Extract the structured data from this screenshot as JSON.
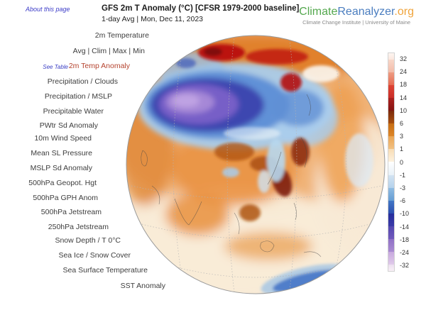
{
  "page": {
    "about_link": "About this page"
  },
  "header": {
    "title": "GFS 2m T Anomaly (°C) [CFSR 1979-2000 baseline]",
    "subtitle": "1-day Avg | Mon, Dec 11, 2023"
  },
  "brand": {
    "climate": "Climate",
    "reanalyzer": "Reanalyzer",
    "org": ".org",
    "tagline": "Climate Change Institute | University of Maine",
    "colors": {
      "climate": "#54a84e",
      "reanalyzer": "#4a7dbf",
      "org": "#f0a43c"
    }
  },
  "sidebar": {
    "see_table": "See Table",
    "selected_index": 2,
    "items": [
      "2m Temperature",
      "Avg | Clim | Max | Min",
      "2m Temp Anomaly",
      "Precipitation / Clouds",
      "Precipitation / MSLP",
      "Precipitable Water",
      "PWtr Sd Anomaly",
      "10m Wind Speed",
      "Mean SL Pressure",
      "MSLP Sd Anomaly",
      "500hPa Geopot. Hgt",
      "500hPa GPH Anom",
      "500hPa Jetstream",
      "250hPa Jetstream",
      "Snow Depth / T 0°C",
      "Sea Ice / Snow Cover",
      "Sea Surface Temperature",
      "SST Anomaly"
    ]
  },
  "colorbar": {
    "unit": "°C",
    "ticks": [
      "32",
      "24",
      "18",
      "14",
      "10",
      "6",
      "3",
      "1",
      "0",
      "-1",
      "-3",
      "-6",
      "-10",
      "-14",
      "-18",
      "-24",
      "-32"
    ],
    "segments": [
      [
        "#fdf5f0",
        "#fbe7de"
      ],
      [
        "#f8d7c9",
        "#f3bba8"
      ],
      [
        "#ee9d83",
        "#e66a52"
      ],
      [
        "#de4434",
        "#c92d28"
      ],
      [
        "#ad211e",
        "#841412"
      ],
      [
        "#7c2a0c",
        "#a84f0e"
      ],
      [
        "#c66d14",
        "#dd8628"
      ],
      [
        "#eaa554",
        "#f2c183"
      ],
      [
        "#f8dcb4",
        "#fdf2df"
      ],
      [
        "#ffffff",
        "#e8f1f8"
      ],
      [
        "#d2e3f2",
        "#b4d2ec"
      ],
      [
        "#90bce2",
        "#659dd4"
      ],
      [
        "#4277c6",
        "#2c4fb0"
      ],
      [
        "#252d9c",
        "#3b3aa8"
      ],
      [
        "#5348b0",
        "#7159bc"
      ],
      [
        "#8f70c6",
        "#ab8cd2"
      ],
      [
        "#c7a8de",
        "#e0cbea"
      ],
      [
        "#ecdff0",
        "#f8f0f6"
      ]
    ]
  },
  "globe": {
    "subject": "2m temperature anomaly, orthographic view centered on Asia",
    "warm_peak_color": "#b81010",
    "cold_peak_color": "#c2a6e4"
  }
}
